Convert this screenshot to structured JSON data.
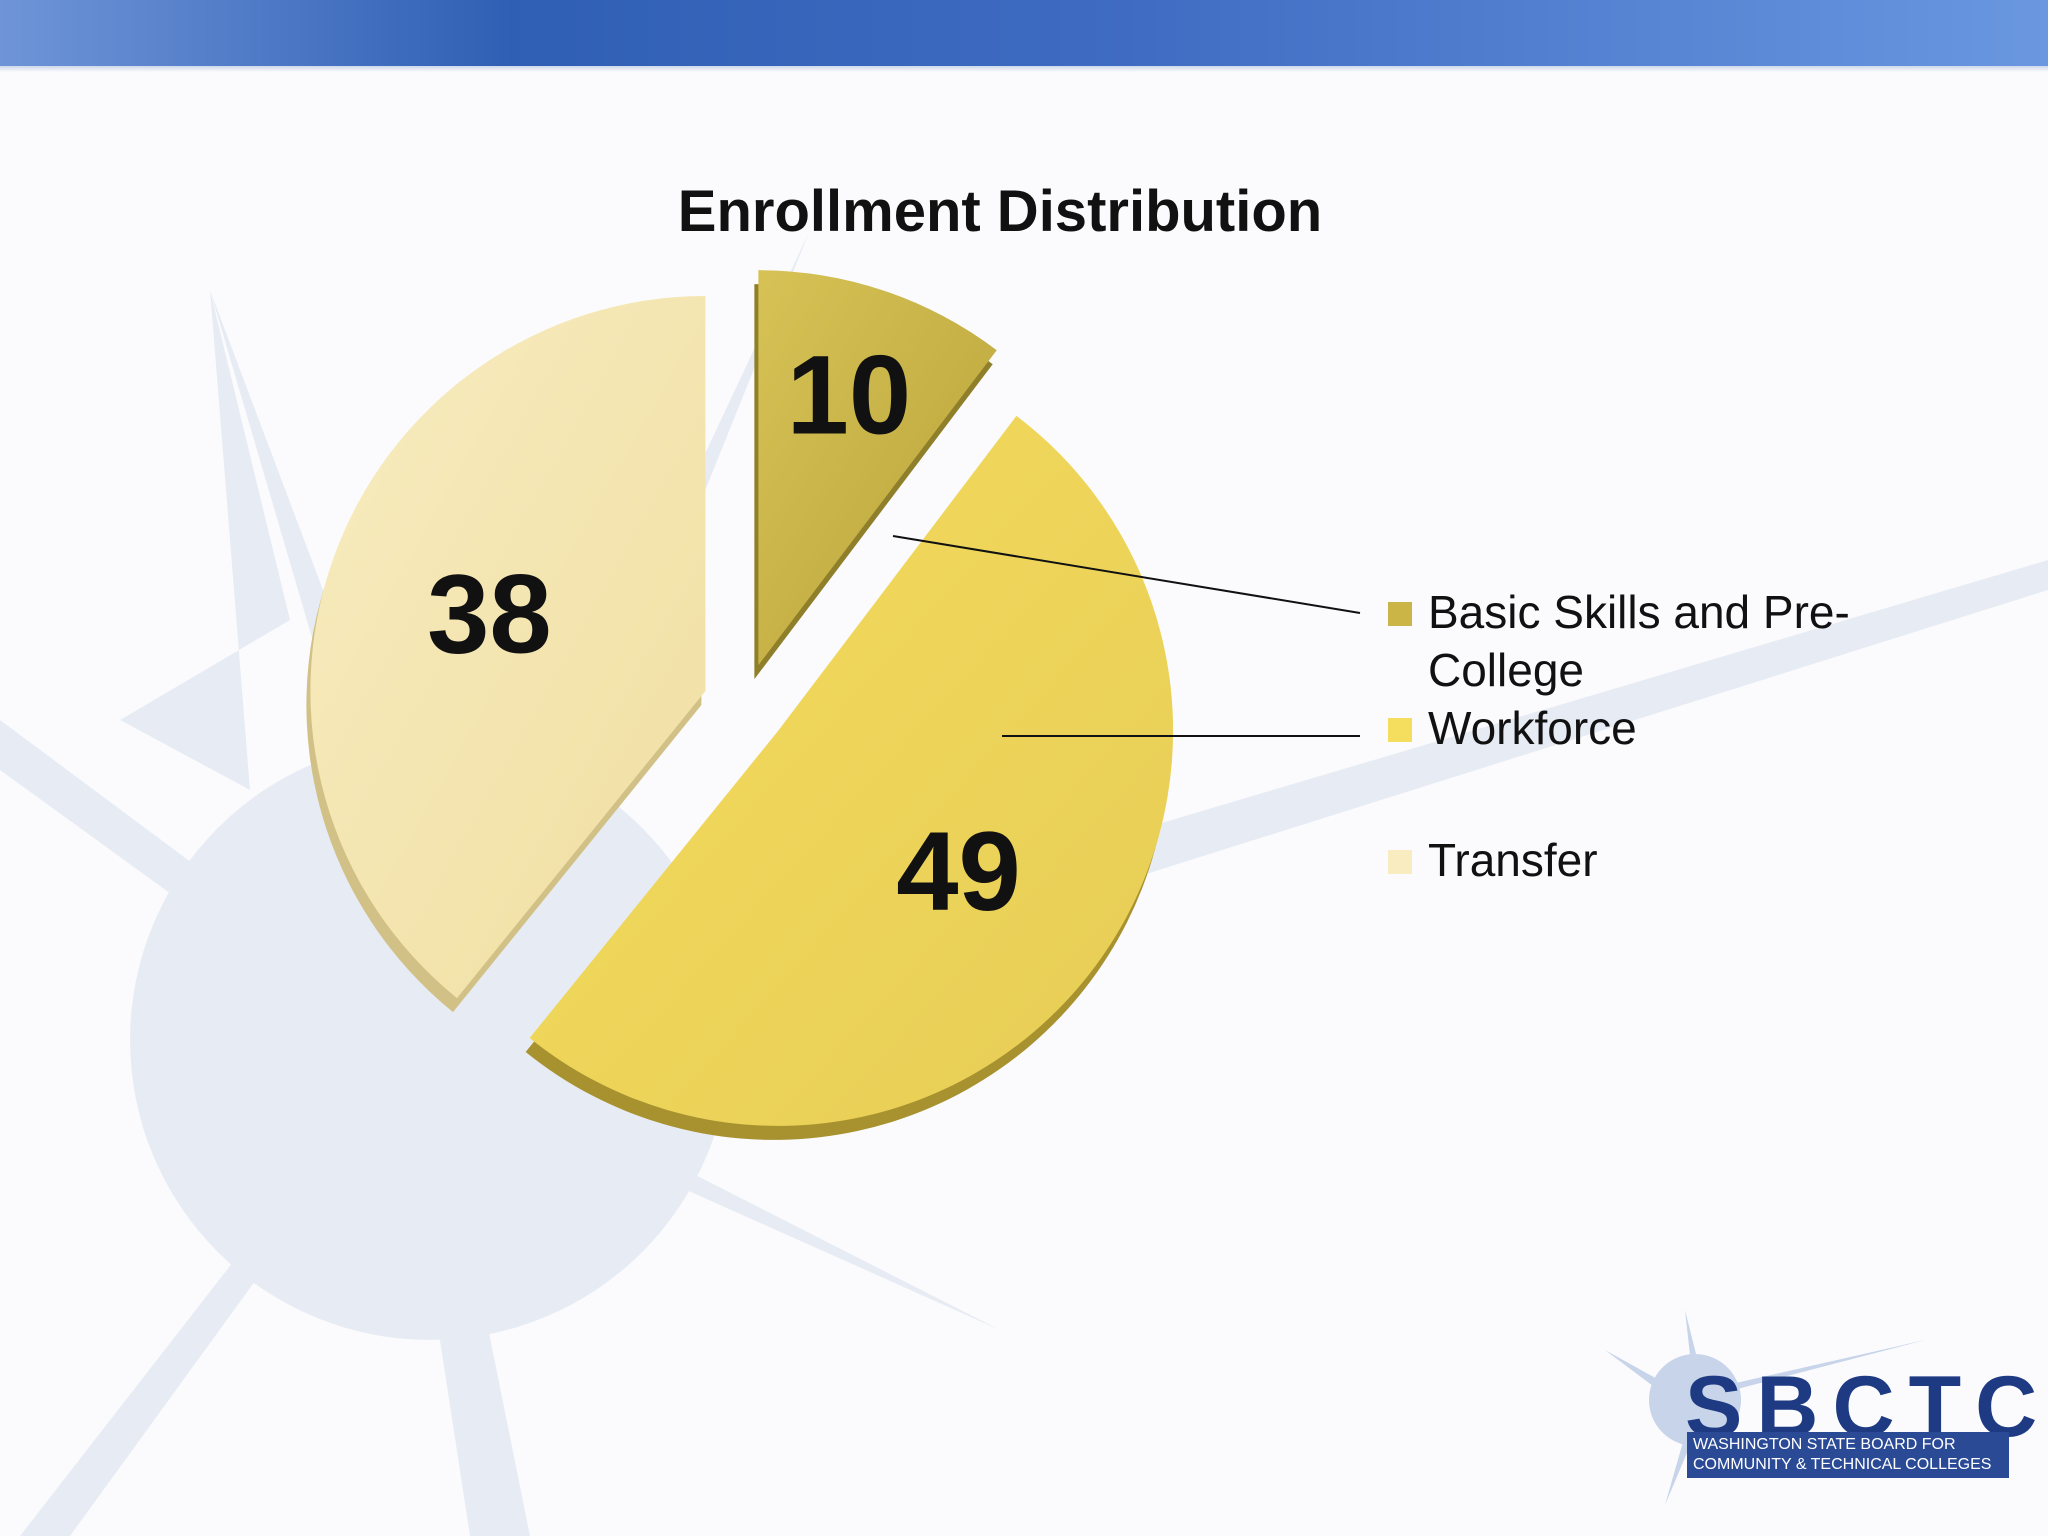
{
  "chart_data": {
    "type": "pie",
    "title": "Enrollment Distribution",
    "categories": [
      "Basic Skills and Pre-College",
      "Workforce",
      "Transfer"
    ],
    "values": [
      10,
      49,
      38
    ],
    "data_labels": [
      "10",
      "49",
      "38"
    ],
    "colors": [
      "#cbb546",
      "#f2d85c",
      "#f7e8b4"
    ],
    "legend_placement": "right",
    "exploded": true,
    "style": "3d"
  },
  "legend": [
    {
      "label_line1": "Basic Skills and Pre-",
      "label_line2": "College"
    },
    {
      "label_line1": "Workforce"
    },
    {
      "label_line1": "Transfer"
    }
  ],
  "logo": {
    "name": "SBCTC",
    "subtitle_line1": "WASHINGTON STATE BOARD FOR",
    "subtitle_line2": "COMMUNITY & TECHNICAL COLLEGES",
    "color": "#1d3a82"
  },
  "theme": {
    "header_color": "#3f6cc2",
    "background_star_color": "#e6ebf3"
  }
}
